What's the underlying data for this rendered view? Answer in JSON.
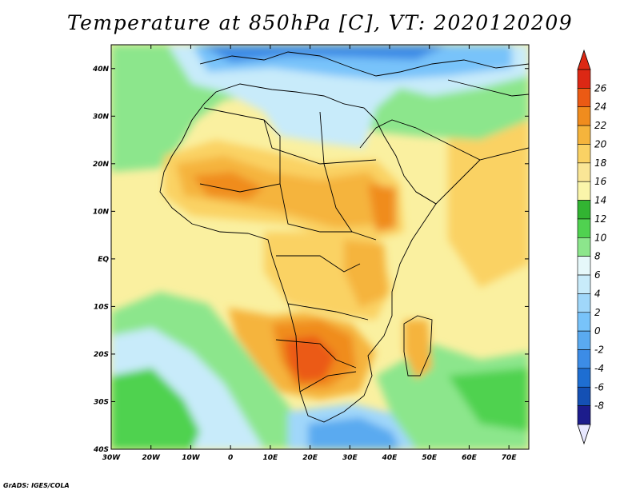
{
  "title": "Temperature at 850hPa [C], VT: 2020120209",
  "credit": "GrADS: IGES/COLA",
  "map": {
    "projection": "lat-lon",
    "lon_range": [
      -30,
      75
    ],
    "lat_range": [
      -40,
      45
    ],
    "lon_ticks": [
      {
        "value": -30,
        "label": "30W"
      },
      {
        "value": -20,
        "label": "20W"
      },
      {
        "value": -10,
        "label": "10W"
      },
      {
        "value": 0,
        "label": "0"
      },
      {
        "value": 10,
        "label": "10E"
      },
      {
        "value": 20,
        "label": "20E"
      },
      {
        "value": 30,
        "label": "30E"
      },
      {
        "value": 40,
        "label": "40E"
      },
      {
        "value": 50,
        "label": "50E"
      },
      {
        "value": 60,
        "label": "60E"
      },
      {
        "value": 70,
        "label": "70E"
      }
    ],
    "lat_ticks": [
      {
        "value": 40,
        "label": "40N"
      },
      {
        "value": 30,
        "label": "30N"
      },
      {
        "value": 20,
        "label": "20N"
      },
      {
        "value": 10,
        "label": "10N"
      },
      {
        "value": 0,
        "label": "EQ"
      },
      {
        "value": -10,
        "label": "10S"
      },
      {
        "value": -20,
        "label": "20S"
      },
      {
        "value": -30,
        "label": "30S"
      },
      {
        "value": -40,
        "label": "40S"
      }
    ]
  },
  "colorbar": {
    "levels": [
      -8,
      -6,
      -4,
      -2,
      0,
      2,
      4,
      6,
      8,
      10,
      12,
      14,
      16,
      18,
      20,
      22,
      24,
      26
    ],
    "labels": [
      "-8",
      "-6",
      "-4",
      "-2",
      "0",
      "2",
      "4",
      "6",
      "8",
      "10",
      "12",
      "14",
      "16",
      "18",
      "20",
      "22",
      "24",
      "26"
    ],
    "colors": [
      "#1c1c8c",
      "#1450b4",
      "#1e6ed2",
      "#3c8ce6",
      "#5aaaf0",
      "#78c3fa",
      "#a0d7fa",
      "#c8ebfa",
      "#e6f8fa",
      "#8ce68c",
      "#50d250",
      "#32b432",
      "#faf5aa",
      "#fae696",
      "#fad264",
      "#f5b43c",
      "#f08c1e",
      "#eb5a14",
      "#dc2814"
    ],
    "min_arrow_color": "#e8e8ff",
    "max_arrow_color": "#dc2814"
  }
}
